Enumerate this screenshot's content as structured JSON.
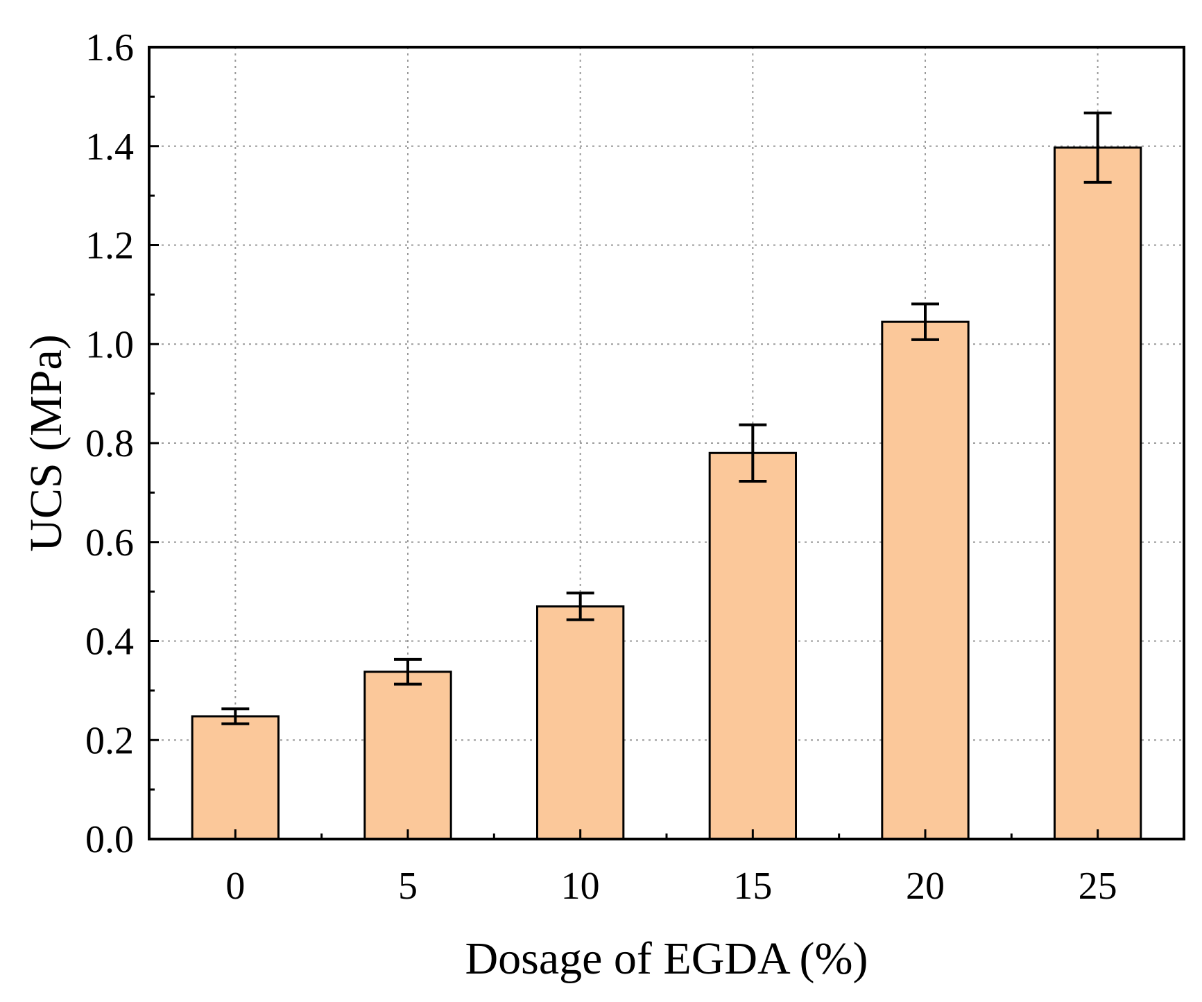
{
  "chart_data": {
    "type": "bar",
    "title": "",
    "xlabel": "Dosage of EGDA (%)",
    "ylabel": "UCS (MPa)",
    "categories": [
      "0",
      "5",
      "10",
      "15",
      "20",
      "25"
    ],
    "values": [
      0.248,
      0.338,
      0.47,
      0.78,
      1.045,
      1.397
    ],
    "errors": [
      0.015,
      0.025,
      0.027,
      0.057,
      0.036,
      0.07
    ],
    "ylim": [
      0.0,
      1.6
    ],
    "yticks": [
      "0.0",
      "0.2",
      "0.4",
      "0.6",
      "0.8",
      "1.0",
      "1.2",
      "1.4",
      "1.6"
    ],
    "grid": true,
    "bar_color": "#fbc89a",
    "edge_color": "#000000"
  }
}
